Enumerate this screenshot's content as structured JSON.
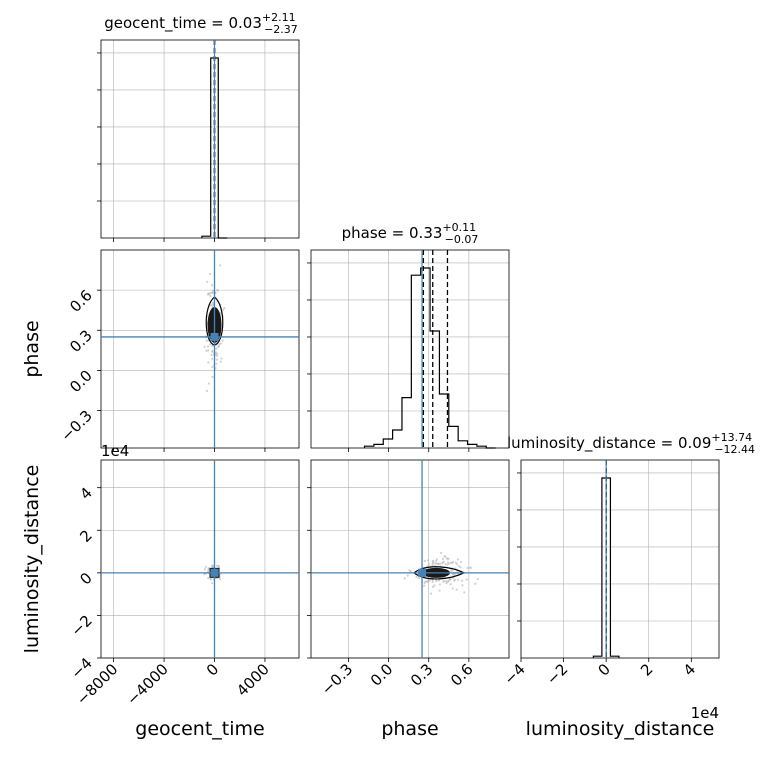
{
  "chart_data": {
    "type": "corner",
    "parameters": [
      "geocent_time",
      "phase",
      "luminosity_distance"
    ],
    "truth": {
      "geocent_time": 0,
      "phase": 0.25,
      "luminosity_distance": 0
    },
    "truth_color": "#4682b4",
    "line_color": "#000000",
    "sample_color": "#bdbdbd",
    "grid": true,
    "axes": {
      "geocent_time": {
        "label": "geocent_time",
        "range": [
          -9000,
          6700
        ],
        "ticks": [
          -8000,
          -4000,
          0,
          4000
        ],
        "tick_labels": [
          "−8000",
          "−4000",
          "0",
          "4000"
        ]
      },
      "phase": {
        "label": "phase",
        "range": [
          -0.58,
          0.9
        ],
        "ticks": [
          -0.3,
          0.0,
          0.3,
          0.6
        ],
        "tick_labels": [
          "−0.3",
          "0.0",
          "0.3",
          "0.6"
        ]
      },
      "luminosity_distance": {
        "label": "luminosity_distance",
        "range": [
          -4,
          5.3
        ],
        "ticks": [
          -4,
          -2,
          0,
          2,
          4
        ],
        "tick_labels": [
          "−4",
          "−2",
          "0",
          "2",
          "4"
        ],
        "offset_text": "1e4"
      }
    },
    "marginals": {
      "geocent_time": {
        "title_name": "geocent_time",
        "median": "0.03",
        "plus": "+2.11",
        "minus": "−2.37",
        "quantiles": [
          -2.34,
          0.03,
          2.14
        ],
        "bins": [
          -1000,
          -300,
          300,
          1000
        ],
        "counts": [
          0.01,
          1.0,
          0.0
        ]
      },
      "phase": {
        "title_name": "phase",
        "median": "0.33",
        "plus": "+0.11",
        "minus": "−0.07",
        "quantiles": [
          0.26,
          0.33,
          0.44
        ],
        "bins": [
          -0.18,
          -0.11,
          -0.04,
          0.03,
          0.1,
          0.17,
          0.24,
          0.31,
          0.38,
          0.45,
          0.52,
          0.59,
          0.66,
          0.73,
          0.8
        ],
        "counts": [
          0.01,
          0.02,
          0.05,
          0.1,
          0.28,
          0.96,
          1.0,
          0.65,
          0.3,
          0.12,
          0.04,
          0.02,
          0.01,
          0.0
        ]
      },
      "luminosity_distance": {
        "title_name": "luminosity_distance",
        "median": "0.09",
        "plus": "+13.74",
        "minus": "−12.44",
        "quantiles": [
          -0.0012,
          0.0,
          0.0014
        ],
        "bins": [
          -0.6,
          -0.2,
          0.2,
          0.6
        ],
        "counts": [
          0.01,
          1.0,
          0.01
        ]
      }
    }
  }
}
